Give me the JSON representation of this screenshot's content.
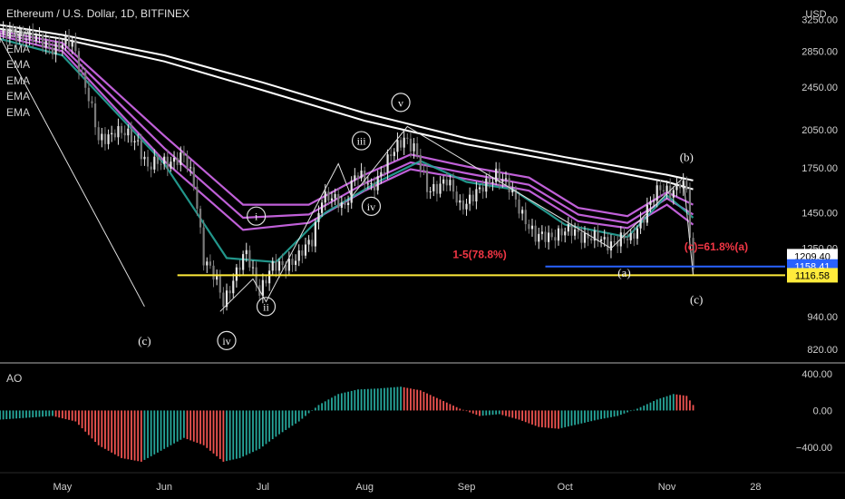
{
  "chart_data": {
    "type": "candlestick",
    "title": "Ethereum / U.S. Dollar, 1D, BITFINEX",
    "currency": "USD",
    "indicators": [
      "EMA",
      "EMA",
      "EMA",
      "EMA",
      "EMA",
      "EMA"
    ],
    "y_ticks": [
      3250,
      2850,
      2450,
      2050,
      1750,
      1450,
      1250,
      940,
      820
    ],
    "y_range": [
      780,
      3450
    ],
    "y_scale": "log",
    "x_ticks": [
      {
        "label": "May",
        "date": "2022-05-01"
      },
      {
        "label": "Jun",
        "date": "2022-06-01"
      },
      {
        "label": "Jul",
        "date": "2022-07-01"
      },
      {
        "label": "Aug",
        "date": "2022-08-01"
      },
      {
        "label": "Sep",
        "date": "2022-09-01"
      },
      {
        "label": "Oct",
        "date": "2022-10-01"
      },
      {
        "label": "Nov",
        "date": "2022-11-01"
      },
      {
        "label": "28",
        "date": "2022-11-28"
      }
    ],
    "x_range": [
      "2022-04-12",
      "2022-12-07"
    ],
    "close_path": [
      [
        "2022-04-12",
        3050
      ],
      [
        "2022-04-20",
        3050
      ],
      [
        "2022-04-28",
        2900
      ],
      [
        "2022-05-04",
        2950
      ],
      [
        "2022-05-09",
        2350
      ],
      [
        "2022-05-12",
        1950
      ],
      [
        "2022-05-17",
        2050
      ],
      [
        "2022-05-24",
        1950
      ],
      [
        "2022-05-27",
        1750
      ],
      [
        "2022-06-01",
        1800
      ],
      [
        "2022-06-07",
        1820
      ],
      [
        "2022-06-10",
        1650
      ],
      [
        "2022-06-13",
        1200
      ],
      [
        "2022-06-17",
        1080
      ],
      [
        "2022-06-19",
        1000
      ],
      [
        "2022-06-22",
        1100
      ],
      [
        "2022-06-26",
        1220
      ],
      [
        "2022-06-30",
        1050
      ],
      [
        "2022-07-04",
        1150
      ],
      [
        "2022-07-12",
        1200
      ],
      [
        "2022-07-16",
        1300
      ],
      [
        "2022-07-19",
        1550
      ],
      [
        "2022-07-26",
        1500
      ],
      [
        "2022-07-29",
        1700
      ],
      [
        "2022-08-03",
        1620
      ],
      [
        "2022-08-07",
        1750
      ],
      [
        "2022-08-13",
        2000
      ],
      [
        "2022-08-16",
        1900
      ],
      [
        "2022-08-20",
        1600
      ],
      [
        "2022-08-26",
        1650
      ],
      [
        "2022-08-30",
        1500
      ],
      [
        "2022-09-05",
        1580
      ],
      [
        "2022-09-10",
        1720
      ],
      [
        "2022-09-14",
        1600
      ],
      [
        "2022-09-18",
        1450
      ],
      [
        "2022-09-22",
        1300
      ],
      [
        "2022-09-28",
        1330
      ],
      [
        "2022-10-04",
        1340
      ],
      [
        "2022-10-10",
        1300
      ],
      [
        "2022-10-14",
        1280
      ],
      [
        "2022-10-18",
        1300
      ],
      [
        "2022-10-21",
        1290
      ],
      [
        "2022-10-26",
        1480
      ],
      [
        "2022-10-30",
        1600
      ],
      [
        "2022-11-03",
        1600
      ],
      [
        "2022-11-05",
        1640
      ],
      [
        "2022-11-07",
        1580
      ],
      [
        "2022-11-08",
        1320
      ],
      [
        "2022-11-09",
        1116.58
      ]
    ],
    "ema_series": [
      {
        "color": "#ffffff",
        "values": [
          [
            "2022-04-12",
            3180
          ],
          [
            "2022-05-01",
            3050
          ],
          [
            "2022-06-01",
            2800
          ],
          [
            "2022-07-01",
            2500
          ],
          [
            "2022-08-01",
            2200
          ],
          [
            "2022-09-01",
            1980
          ],
          [
            "2022-10-01",
            1830
          ],
          [
            "2022-11-01",
            1700
          ],
          [
            "2022-11-09",
            1660
          ]
        ]
      },
      {
        "color": "#ffffff",
        "values": [
          [
            "2022-04-12",
            3130
          ],
          [
            "2022-05-01",
            3000
          ],
          [
            "2022-06-01",
            2730
          ],
          [
            "2022-07-01",
            2420
          ],
          [
            "2022-08-01",
            2130
          ],
          [
            "2022-09-01",
            1930
          ],
          [
            "2022-10-01",
            1790
          ],
          [
            "2022-11-01",
            1650
          ],
          [
            "2022-11-09",
            1600
          ]
        ]
      },
      {
        "color": "#c060d8",
        "values": [
          [
            "2022-04-12",
            3100
          ],
          [
            "2022-05-01",
            2950
          ],
          [
            "2022-06-01",
            2000
          ],
          [
            "2022-06-25",
            1500
          ],
          [
            "2022-07-15",
            1500
          ],
          [
            "2022-08-01",
            1700
          ],
          [
            "2022-08-15",
            1850
          ],
          [
            "2022-09-01",
            1760
          ],
          [
            "2022-09-20",
            1680
          ],
          [
            "2022-10-05",
            1480
          ],
          [
            "2022-10-20",
            1430
          ],
          [
            "2022-11-01",
            1580
          ],
          [
            "2022-11-09",
            1500
          ]
        ]
      },
      {
        "color": "#c060d8",
        "values": [
          [
            "2022-04-12",
            3070
          ],
          [
            "2022-05-01",
            2900
          ],
          [
            "2022-06-01",
            1900
          ],
          [
            "2022-06-25",
            1420
          ],
          [
            "2022-07-15",
            1440
          ],
          [
            "2022-08-01",
            1640
          ],
          [
            "2022-08-15",
            1790
          ],
          [
            "2022-09-01",
            1710
          ],
          [
            "2022-09-20",
            1630
          ],
          [
            "2022-10-05",
            1440
          ],
          [
            "2022-10-20",
            1390
          ],
          [
            "2022-11-01",
            1540
          ],
          [
            "2022-11-09",
            1440
          ]
        ]
      },
      {
        "color": "#c060d8",
        "values": [
          [
            "2022-04-12",
            3040
          ],
          [
            "2022-05-01",
            2850
          ],
          [
            "2022-06-01",
            1800
          ],
          [
            "2022-06-25",
            1350
          ],
          [
            "2022-07-15",
            1390
          ],
          [
            "2022-08-01",
            1590
          ],
          [
            "2022-08-15",
            1740
          ],
          [
            "2022-09-01",
            1670
          ],
          [
            "2022-09-20",
            1590
          ],
          [
            "2022-10-05",
            1400
          ],
          [
            "2022-10-20",
            1360
          ],
          [
            "2022-11-01",
            1500
          ],
          [
            "2022-11-09",
            1380
          ]
        ]
      },
      {
        "color": "#26a69a",
        "values": [
          [
            "2022-04-12",
            3000
          ],
          [
            "2022-05-01",
            2800
          ],
          [
            "2022-06-01",
            1780
          ],
          [
            "2022-06-20",
            1200
          ],
          [
            "2022-07-05",
            1180
          ],
          [
            "2022-07-20",
            1450
          ],
          [
            "2022-08-05",
            1650
          ],
          [
            "2022-08-18",
            1800
          ],
          [
            "2022-09-01",
            1650
          ],
          [
            "2022-09-15",
            1600
          ],
          [
            "2022-10-01",
            1380
          ],
          [
            "2022-10-20",
            1310
          ],
          [
            "2022-11-01",
            1560
          ],
          [
            "2022-11-09",
            1420
          ]
        ]
      }
    ],
    "wave_lines": [
      [
        [
          "2022-04-12",
          3020
        ],
        [
          "2022-05-26",
          980
        ]
      ],
      [
        [
          "2022-06-18",
          960
        ],
        [
          "2022-06-28",
          1100
        ],
        [
          "2022-07-02",
          1000
        ],
        [
          "2022-07-24",
          1780
        ],
        [
          "2022-07-28",
          1550
        ],
        [
          "2022-08-14",
          2080
        ],
        [
          "2022-10-15",
          1250
        ],
        [
          "2022-11-06",
          1680
        ],
        [
          "2022-11-09",
          1116.58
        ]
      ]
    ],
    "wave_labels": [
      {
        "text": "i",
        "date": "2022-06-29",
        "price": 1430,
        "circled": true
      },
      {
        "text": "ii",
        "date": "2022-07-02",
        "price": 980,
        "circled": true
      },
      {
        "text": "iii",
        "date": "2022-07-31",
        "price": 1960,
        "circled": true
      },
      {
        "text": "iv",
        "date": "2022-08-03",
        "price": 1490,
        "circled": true
      },
      {
        "text": "v",
        "date": "2022-08-12",
        "price": 2300,
        "circled": true
      },
      {
        "text": "iv",
        "date": "2022-06-20",
        "price": 850,
        "circled": true
      },
      {
        "text": "(c)",
        "date": "2022-05-26",
        "price": 850,
        "circled": false
      },
      {
        "text": "(b)",
        "date": "2022-11-07",
        "price": 1830,
        "circled": false
      },
      {
        "text": "(a)",
        "date": "2022-10-19",
        "price": 1130,
        "circled": false
      },
      {
        "text": "(c)",
        "date": "2022-11-10",
        "price": 1010,
        "circled": false
      }
    ],
    "fib_annotations": [
      {
        "text": "1-5(78.8%)",
        "date": "2022-09-05",
        "price": 1200,
        "color": "#f23645"
      },
      {
        "text": "(c)=61.8%(a)",
        "date": "2022-11-16",
        "price": 1240,
        "color": "#f23645"
      }
    ],
    "horizontal_lines": [
      {
        "price": 1158.41,
        "from": "2022-09-25",
        "to": "2022-12-07",
        "color": "#2962ff"
      },
      {
        "price": 1116.58,
        "from": "2022-06-05",
        "to": "2022-12-07",
        "color": "#ffeb3b"
      }
    ],
    "price_tags": [
      {
        "price": 1209.4,
        "label": "1209.40",
        "bg": "#ffffff",
        "fg": "#000000"
      },
      {
        "price": 1158.41,
        "label": "1158.41",
        "bg": "#2962ff",
        "fg": "#ffffff"
      },
      {
        "price": 1116.58,
        "label": "1116.58",
        "bg": "#ffeb3b",
        "fg": "#000000"
      }
    ],
    "ao": {
      "label": "AO",
      "y_ticks": [
        400,
        0,
        -400
      ],
      "y_range": [
        -650,
        500
      ],
      "values": [
        [
          "2022-04-12",
          -100
        ],
        [
          "2022-04-20",
          -80
        ],
        [
          "2022-04-28",
          -60
        ],
        [
          "2022-05-05",
          -120
        ],
        [
          "2022-05-12",
          -380
        ],
        [
          "2022-05-19",
          -520
        ],
        [
          "2022-05-25",
          -560
        ],
        [
          "2022-06-01",
          -420
        ],
        [
          "2022-06-07",
          -300
        ],
        [
          "2022-06-13",
          -380
        ],
        [
          "2022-06-19",
          -560
        ],
        [
          "2022-06-24",
          -520
        ],
        [
          "2022-06-30",
          -420
        ],
        [
          "2022-07-06",
          -260
        ],
        [
          "2022-07-12",
          -120
        ],
        [
          "2022-07-18",
          60
        ],
        [
          "2022-07-24",
          180
        ],
        [
          "2022-07-30",
          230
        ],
        [
          "2022-08-05",
          240
        ],
        [
          "2022-08-12",
          260
        ],
        [
          "2022-08-18",
          220
        ],
        [
          "2022-08-24",
          120
        ],
        [
          "2022-08-30",
          20
        ],
        [
          "2022-09-05",
          -60
        ],
        [
          "2022-09-11",
          -40
        ],
        [
          "2022-09-17",
          -100
        ],
        [
          "2022-09-23",
          -180
        ],
        [
          "2022-09-29",
          -200
        ],
        [
          "2022-10-05",
          -150
        ],
        [
          "2022-10-11",
          -100
        ],
        [
          "2022-10-17",
          -60
        ],
        [
          "2022-10-23",
          20
        ],
        [
          "2022-10-29",
          120
        ],
        [
          "2022-11-03",
          180
        ],
        [
          "2022-11-07",
          160
        ],
        [
          "2022-11-09",
          60
        ]
      ]
    }
  }
}
